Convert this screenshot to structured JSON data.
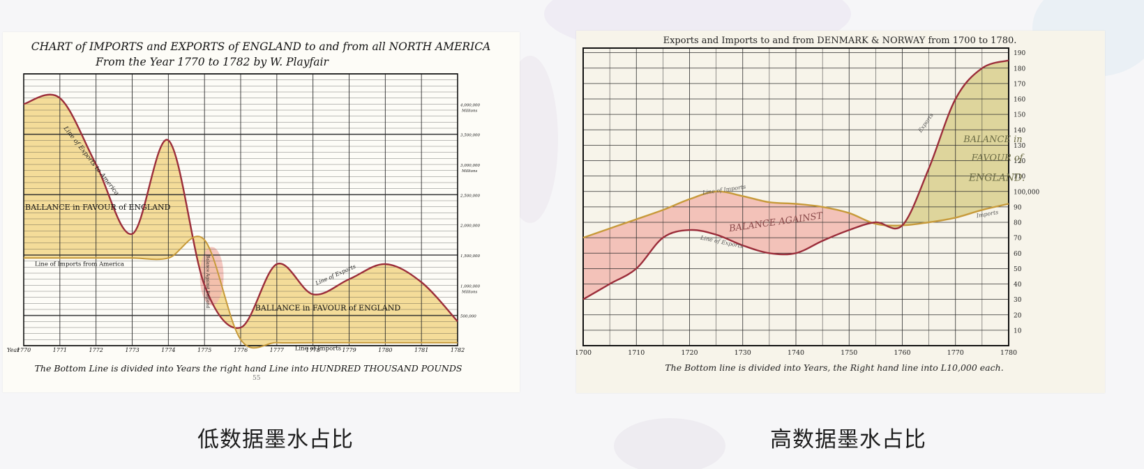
{
  "captions": {
    "left": "低数据墨水占比",
    "right": "高数据墨水占比"
  },
  "colors": {
    "line": "#9b2d3a",
    "import_line": "#c79a3a",
    "favour_fill": "#f0d27a",
    "against_fill": "#f2b9b0",
    "grid": "#2b2b2b"
  },
  "left_chart": {
    "title_line1": "CHART of IMPORTS and EXPORTS of ENGLAND to and from all NORTH AMERICA",
    "title_line2": "From the Year 1770 to 1782 by W. Playfair",
    "footer": "The Bottom Line is divided into Years the right hand Line into HUNDRED THOUSAND POUNDS",
    "page_number": "55",
    "year_word": "Year",
    "right_scale_marks": [
      "4,000,000",
      "3,500,000",
      "3,000,000",
      "2,500,000",
      "2,000,000",
      "1,500,000",
      "1,000,000",
      "500,000"
    ],
    "right_scale_words": [
      "Millions",
      "Millions",
      "Millions"
    ],
    "annotations": {
      "exports_label": "Line of Exports to America",
      "balance_top": "BALLANCE in FAVOUR of ENGLAND",
      "imports_label": "Line of Imports from America",
      "balance_against": "Balance Against England",
      "exports_label2": "Line of Exports",
      "balance_bottom": "BALLANCE in FAVOUR of ENGLAND",
      "imports_label2": "Line of Imports"
    }
  },
  "right_chart": {
    "title": "Exports and Imports to and from DENMARK & NORWAY from 1700 to 1780.",
    "footer": "The Bottom line is divided into Years, the Right hand line into L10,000 each.",
    "annotations": {
      "balance_against": "BALANCE AGAINST",
      "balance_favour_1": "BALANCE in",
      "balance_favour_2": "FAVOUR of",
      "balance_favour_3": "ENGLAND.",
      "line_imports": "Line of Imports",
      "line_exports": "Line of Exports",
      "exports": "Exports",
      "imports": "Imports"
    }
  },
  "chart_data": [
    {
      "type": "area",
      "title": "CHART of IMPORTS and EXPORTS of ENGLAND to and from all NORTH AMERICA From the Year 1770 to 1782 by W. Playfair",
      "xlabel": "",
      "ylabel": "",
      "x": [
        1770,
        1771,
        1772,
        1773,
        1774,
        1775,
        1776,
        1777,
        1778,
        1779,
        1780,
        1781,
        1782
      ],
      "xticks": [
        "1770",
        "1771",
        "1772",
        "1773",
        "1774",
        "1775",
        "1776",
        "1777",
        "1778",
        "1779",
        "1780",
        "1781",
        "1782"
      ],
      "ylim": [
        0,
        4.5
      ],
      "y_unit": "Millions",
      "series": [
        {
          "name": "Line of Exports",
          "values": [
            4.0,
            4.1,
            3.0,
            1.85,
            3.4,
            1.0,
            0.3,
            1.35,
            0.85,
            1.1,
            1.35,
            1.05,
            0.4
          ]
        },
        {
          "name": "Line of Imports",
          "values": [
            1.45,
            1.45,
            1.45,
            1.45,
            1.45,
            1.75,
            0.1,
            0.05,
            0.05,
            0.05,
            0.05,
            0.05,
            0.05
          ]
        }
      ],
      "grid": true,
      "legend": "none"
    },
    {
      "type": "area",
      "title": "Exports and Imports to and from DENMARK & NORWAY from 1700 to 1780.",
      "xlabel": "",
      "ylabel": "",
      "x": [
        1700,
        1705,
        1710,
        1715,
        1720,
        1725,
        1730,
        1735,
        1740,
        1745,
        1750,
        1755,
        1760,
        1765,
        1770,
        1775,
        1780
      ],
      "xticks": [
        "1700",
        "1710",
        "1720",
        "1730",
        "1740",
        "1750",
        "1760",
        "1770",
        "1780"
      ],
      "yticks": [
        10,
        20,
        30,
        40,
        50,
        60,
        70,
        80,
        90,
        100,
        110,
        120,
        130,
        140,
        150,
        160,
        170,
        180,
        190
      ],
      "ylim": [
        0,
        190
      ],
      "series": [
        {
          "name": "Exports",
          "values": [
            30,
            40,
            50,
            70,
            75,
            72,
            65,
            60,
            60,
            68,
            75,
            80,
            78,
            115,
            160,
            180,
            185
          ]
        },
        {
          "name": "Imports",
          "values": [
            70,
            76,
            82,
            88,
            95,
            100,
            97,
            93,
            92,
            90,
            86,
            79,
            78,
            80,
            83,
            88,
            92
          ]
        }
      ],
      "grid": true,
      "legend": "none"
    }
  ]
}
